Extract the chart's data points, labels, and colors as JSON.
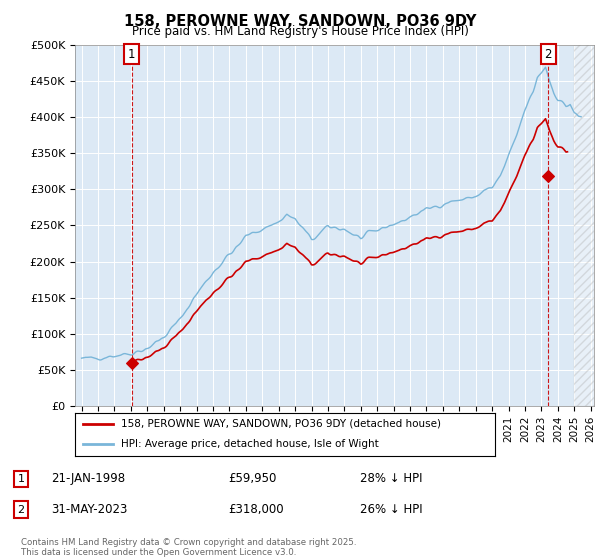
{
  "title": "158, PEROWNE WAY, SANDOWN, PO36 9DY",
  "subtitle": "Price paid vs. HM Land Registry's House Price Index (HPI)",
  "legend_line1": "158, PEROWNE WAY, SANDOWN, PO36 9DY (detached house)",
  "legend_line2": "HPI: Average price, detached house, Isle of Wight",
  "annotation1_date": "21-JAN-1998",
  "annotation1_price": "£59,950",
  "annotation1_hpi": "28% ↓ HPI",
  "annotation2_date": "31-MAY-2023",
  "annotation2_price": "£318,000",
  "annotation2_hpi": "26% ↓ HPI",
  "footer": "Contains HM Land Registry data © Crown copyright and database right 2025.\nThis data is licensed under the Open Government Licence v3.0.",
  "hpi_color": "#7ab6d9",
  "price_color": "#cc0000",
  "plot_bg_color": "#dce9f5",
  "sale1_x": 1998.055,
  "sale1_y": 59950,
  "sale2_x": 2023.42,
  "sale2_y": 318000,
  "ylim": [
    0,
    500000
  ],
  "xlim_start": 1994.6,
  "xlim_end": 2026.2,
  "hatch_start": 2025.0,
  "yticks": [
    0,
    50000,
    100000,
    150000,
    200000,
    250000,
    300000,
    350000,
    400000,
    450000,
    500000
  ],
  "ytick_labels": [
    "£0",
    "£50K",
    "£100K",
    "£150K",
    "£200K",
    "£250K",
    "£300K",
    "£350K",
    "£400K",
    "£450K",
    "£500K"
  ]
}
